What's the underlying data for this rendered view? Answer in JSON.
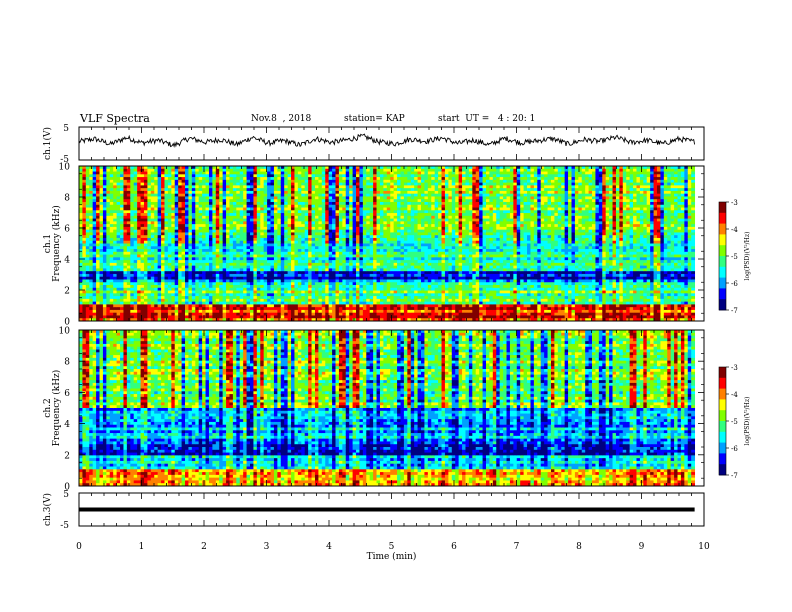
{
  "header": {
    "title": "VLF Spectra",
    "date": "Nov.8  , 2018",
    "station": "station= KAP",
    "start_ut": "start  UT =   4 : 20: 1"
  },
  "chart_data": [
    {
      "id": "ch1-waveform",
      "type": "line",
      "ylabel": "ch.1(V)",
      "yticks": [
        "5",
        "-5"
      ],
      "ylim": [
        -5,
        5
      ],
      "x_range_min": [
        0,
        9.85
      ],
      "description_trace": "noisy waveform roughly between -1 and +2 V",
      "approx_values": [
        0.6,
        1.4,
        -0.2,
        1.8,
        0.2,
        1.0,
        -0.6,
        1.6,
        0.4,
        1.2,
        -0.3,
        1.9,
        0.1,
        0.9,
        -0.5,
        1.5,
        0.3,
        1.1,
        2.2,
        0.5,
        -0.1,
        1.3,
        0.7,
        1.7,
        0.0,
        1.0,
        -0.4,
        1.6,
        0.2,
        0.8,
        1.5,
        -0.2,
        1.2,
        0.6,
        1.9,
        0.3,
        1.0,
        -0.1,
        1.4,
        0.5
      ]
    },
    {
      "id": "ch1-spectrogram",
      "type": "heatmap",
      "ylabel": "ch.1\nFrequency (kHz)",
      "yticks": [
        "0",
        "2",
        "4",
        "6",
        "8",
        "10"
      ],
      "ylim_khz": [
        0,
        10
      ],
      "xlim_min": [
        0,
        10
      ],
      "colorbar": {
        "label": "log(PSD)(V²/Hz)",
        "ticks": [
          "-3",
          "-4",
          "-5",
          "-6",
          "-7"
        ],
        "range": [
          -7,
          -3
        ]
      },
      "band_profile_by_khz": [
        {
          "from": 0,
          "to": 1,
          "level": -3.6
        },
        {
          "from": 1,
          "to": 2.5,
          "level": -5.0
        },
        {
          "from": 2.5,
          "to": 3.3,
          "level": -6.3
        },
        {
          "from": 3.3,
          "to": 5.5,
          "level": -5.4
        },
        {
          "from": 5.5,
          "to": 10,
          "level": -4.8
        }
      ]
    },
    {
      "id": "ch2-spectrogram",
      "type": "heatmap",
      "ylabel": "ch.2\nFrequency (kHz)",
      "yticks": [
        "0",
        "2",
        "4",
        "6",
        "8",
        "10"
      ],
      "ylim_khz": [
        0,
        10
      ],
      "xlim_min": [
        0,
        10
      ],
      "colorbar": {
        "label": "log(PSD)(V²/Hz)",
        "ticks": [
          "-3",
          "-4",
          "-5",
          "-6",
          "-7"
        ],
        "range": [
          -7,
          -3
        ]
      },
      "band_profile_by_khz": [
        {
          "from": 0,
          "to": 1,
          "level": -4.0
        },
        {
          "from": 1,
          "to": 2.0,
          "level": -5.6
        },
        {
          "from": 2.0,
          "to": 3.0,
          "level": -6.3
        },
        {
          "from": 3.0,
          "to": 5.0,
          "level": -5.8
        },
        {
          "from": 5.0,
          "to": 10,
          "level": -4.9
        }
      ]
    },
    {
      "id": "ch3-waveform",
      "type": "line",
      "ylabel": "ch.3(V)",
      "yticks": [
        "5",
        "-5"
      ],
      "ylim": [
        -5,
        5
      ],
      "x_range_min": [
        0,
        9.85
      ],
      "constant_value": 0
    }
  ],
  "x_axis": {
    "label": "Time  (min)",
    "ticks": [
      "0",
      "1",
      "2",
      "3",
      "4",
      "5",
      "6",
      "7",
      "8",
      "9",
      "10"
    ],
    "range": [
      0,
      10
    ]
  },
  "colors": {
    "colormap": [
      "#000080",
      "#0000ff",
      "#00a0ff",
      "#00ffff",
      "#30ff80",
      "#80ff00",
      "#ffff00",
      "#ff8000",
      "#ff0000",
      "#800000"
    ]
  }
}
